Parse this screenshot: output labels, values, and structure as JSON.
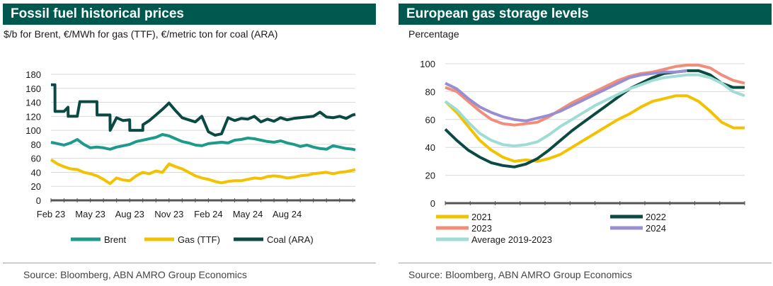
{
  "colors": {
    "title_bg": "#00584f",
    "brent": "#1d9a8a",
    "gas": "#f2c100",
    "coal": "#0a4a42",
    "y2021": "#f2c100",
    "y2022": "#0a4a42",
    "y2023": "#f08e7a",
    "y2024": "#9a8ed2",
    "avg": "#9edcd4",
    "axis": "#666666",
    "grid": "#d9d9d9"
  },
  "left": {
    "title": "Fossil fuel historical prices",
    "subtitle": "$/b for Brent, €/MWh for gas (TTF), €/metric ton for coal (ARA)",
    "source": "Source: Bloomberg, ABN AMRO Group Economics"
  },
  "right": {
    "title": "European gas storage levels",
    "subtitle": "Percentage",
    "source": "Source: Bloomberg, ABN AMRO Group Economics"
  },
  "chart_data": [
    {
      "type": "line",
      "title": "Fossil fuel historical prices",
      "ylim": [
        0,
        180
      ],
      "yticks": [
        0,
        20,
        40,
        60,
        80,
        100,
        120,
        140,
        160,
        180
      ],
      "xlim": [
        0,
        23.2
      ],
      "x_tick_labels": [
        "Feb 23",
        "May 23",
        "Aug 23",
        "Nov 23",
        "Feb 24",
        "May 24",
        "Aug 24"
      ],
      "x_tick_positions": [
        0,
        3,
        6,
        9,
        12,
        15,
        18
      ],
      "legend_position": "bottom",
      "series": [
        {
          "name": "Brent",
          "color_key": "brent",
          "x": [
            0,
            0.5,
            1,
            1.5,
            2,
            2.5,
            3,
            3.5,
            4,
            4.5,
            5,
            5.5,
            6,
            6.5,
            7,
            7.5,
            8,
            8.5,
            9,
            9.5,
            10,
            10.5,
            11,
            11.5,
            12,
            12.5,
            13,
            13.5,
            14,
            14.5,
            15,
            15.5,
            16,
            16.5,
            17,
            17.5,
            18,
            18.5,
            19,
            19.5,
            20,
            20.5,
            21,
            21.5,
            22,
            22.5,
            23,
            23.2
          ],
          "values": [
            83,
            81,
            79,
            82,
            87,
            80,
            75,
            76,
            75,
            73,
            76,
            78,
            80,
            84,
            86,
            88,
            90,
            94,
            92,
            88,
            84,
            82,
            79,
            78,
            81,
            82,
            83,
            82,
            86,
            87,
            89,
            88,
            86,
            84,
            83,
            85,
            82,
            80,
            77,
            79,
            76,
            74,
            73,
            78,
            76,
            74,
            73,
            72
          ]
        },
        {
          "name": "Gas (TTF)",
          "color_key": "gas",
          "x": [
            0,
            0.5,
            1,
            1.5,
            2,
            2.5,
            3,
            3.5,
            4,
            4.5,
            5,
            5.5,
            6,
            6.5,
            7,
            7.5,
            8,
            8.5,
            9,
            9.5,
            10,
            10.5,
            11,
            11.5,
            12,
            12.5,
            13,
            13.5,
            14,
            14.5,
            15,
            15.5,
            16,
            16.5,
            17,
            17.5,
            18,
            18.5,
            19,
            19.5,
            20,
            20.5,
            21,
            21.5,
            22,
            22.5,
            23,
            23.2
          ],
          "values": [
            58,
            52,
            48,
            45,
            44,
            40,
            38,
            35,
            30,
            24,
            32,
            29,
            28,
            35,
            40,
            38,
            42,
            40,
            52,
            48,
            45,
            40,
            35,
            32,
            30,
            27,
            25,
            27,
            28,
            28,
            30,
            32,
            31,
            34,
            35,
            34,
            32,
            33,
            35,
            36,
            38,
            39,
            40,
            38,
            40,
            41,
            43,
            44
          ]
        },
        {
          "name": "Coal (ARA)",
          "color_key": "coal",
          "x": [
            0,
            0.3,
            0.31,
            1,
            1.3,
            1.31,
            2,
            2.2,
            2.21,
            3,
            3.5,
            3.51,
            4.5,
            4.51,
            5,
            5.5,
            6,
            6.01,
            7,
            7.01,
            7.5,
            8,
            8.5,
            9,
            9.5,
            10,
            10.5,
            11,
            11.5,
            12,
            12.5,
            13,
            13.5,
            14,
            14.5,
            15,
            15.5,
            16,
            16.5,
            17,
            17.5,
            18,
            18.5,
            19,
            19.5,
            20,
            20.5,
            21,
            21.5,
            22,
            22.5,
            23,
            23.2
          ],
          "values": [
            165,
            165,
            127,
            127,
            133,
            120,
            120,
            141,
            141,
            141,
            141,
            122,
            122,
            100,
            118,
            114,
            115,
            100,
            100,
            108,
            114,
            122,
            130,
            139,
            128,
            118,
            115,
            112,
            120,
            98,
            93,
            95,
            118,
            114,
            117,
            116,
            120,
            112,
            116,
            113,
            118,
            115,
            117,
            118,
            119,
            120,
            126,
            119,
            118,
            120,
            117,
            122,
            123
          ]
        }
      ]
    },
    {
      "type": "line",
      "title": "European gas storage levels",
      "ylabel": "Percentage",
      "ylim": [
        0,
        100
      ],
      "yticks": [
        0,
        20,
        40,
        60,
        80,
        100
      ],
      "xlim": [
        0,
        52
      ],
      "legend_position": "bottom",
      "series": [
        {
          "name": "2021",
          "color_key": "y2021",
          "x": [
            0,
            2,
            4,
            6,
            8,
            10,
            12,
            14,
            16,
            18,
            20,
            22,
            24,
            26,
            28,
            30,
            32,
            34,
            36,
            38,
            40,
            42,
            44,
            46,
            48,
            50,
            52
          ],
          "values": [
            73,
            65,
            55,
            45,
            38,
            33,
            30,
            31,
            30,
            32,
            35,
            40,
            45,
            50,
            55,
            60,
            64,
            69,
            73,
            75,
            77,
            77,
            73,
            66,
            58,
            54,
            54
          ]
        },
        {
          "name": "2022",
          "color_key": "y2022",
          "x": [
            0,
            2,
            4,
            6,
            8,
            10,
            12,
            14,
            16,
            18,
            20,
            22,
            24,
            26,
            28,
            30,
            32,
            34,
            36,
            38,
            40,
            42,
            44,
            46,
            48,
            50,
            52
          ],
          "values": [
            53,
            45,
            38,
            33,
            29,
            27,
            26,
            28,
            32,
            38,
            45,
            52,
            58,
            64,
            70,
            76,
            82,
            86,
            90,
            93,
            94,
            95,
            95,
            92,
            86,
            83,
            83
          ]
        },
        {
          "name": "2023",
          "color_key": "y2023",
          "x": [
            0,
            2,
            4,
            6,
            8,
            10,
            12,
            14,
            16,
            18,
            20,
            22,
            24,
            26,
            28,
            30,
            32,
            34,
            36,
            38,
            40,
            42,
            44,
            46,
            48,
            50,
            52
          ],
          "values": [
            83,
            80,
            73,
            66,
            60,
            57,
            56,
            57,
            58,
            62,
            67,
            72,
            76,
            80,
            84,
            88,
            91,
            93,
            94,
            96,
            98,
            99,
            99,
            97,
            92,
            88,
            86
          ]
        },
        {
          "name": "2024",
          "color_key": "y2024",
          "x": [
            0,
            2,
            4,
            6,
            8,
            10,
            12,
            14,
            16,
            18,
            20,
            22,
            24,
            26,
            28,
            30,
            32,
            34,
            36,
            38,
            40,
            42
          ],
          "values": [
            86,
            82,
            75,
            69,
            65,
            62,
            60,
            59,
            61,
            63,
            66,
            70,
            74,
            78,
            82,
            86,
            90,
            92,
            93,
            94,
            94,
            95
          ]
        },
        {
          "name": "Average 2019-2023",
          "color_key": "avg",
          "x": [
            0,
            2,
            4,
            6,
            8,
            10,
            12,
            14,
            16,
            18,
            20,
            22,
            24,
            26,
            28,
            30,
            32,
            34,
            36,
            38,
            40,
            42,
            44,
            46,
            48,
            50,
            52
          ],
          "values": [
            73,
            67,
            58,
            50,
            45,
            42,
            41,
            42,
            44,
            49,
            55,
            60,
            65,
            70,
            74,
            78,
            82,
            85,
            88,
            90,
            91,
            92,
            92,
            90,
            86,
            80,
            77
          ]
        }
      ]
    }
  ]
}
